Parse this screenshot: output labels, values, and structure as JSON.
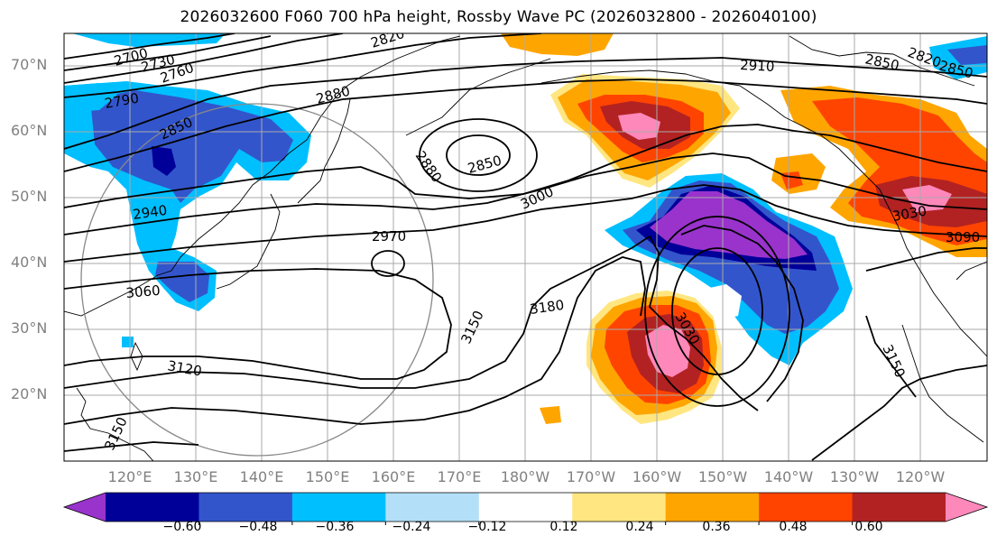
{
  "title": "2026032600 F060 700 hPa height, Rossby Wave PC (2026032800 - 2026040100)",
  "lat_labels": [
    "70°N",
    "60°N",
    "50°N",
    "40°N",
    "30°N",
    "20°N"
  ],
  "lon_labels": [
    "120°E",
    "130°E",
    "140°E",
    "150°E",
    "160°E",
    "170°E",
    "180°W",
    "170°W",
    "160°W",
    "150°W",
    "140°W",
    "130°W",
    "120°W"
  ],
  "contour_labels": [
    "2700",
    "2730",
    "2760",
    "2790",
    "2850",
    "2880",
    "2820",
    "2910",
    "2850",
    "2820",
    "2850",
    "2880",
    "2850",
    "2940",
    "2970",
    "3000",
    "3060",
    "3120",
    "3150",
    "3150",
    "3180",
    "3030",
    "3030",
    "3090",
    "3150"
  ],
  "colorbar": {
    "ticks": [
      "−0.60",
      "−0.48",
      "−0.36",
      "−0.24",
      "−0.12",
      "0.12",
      "0.24",
      "0.36",
      "0.48",
      "0.60"
    ],
    "bins": [
      {
        "color": "#9933cc"
      },
      {
        "color": "#000099"
      },
      {
        "color": "#3355cc"
      },
      {
        "color": "#00bfff"
      },
      {
        "color": "#b3e0f8"
      },
      {
        "color": "#ffffff"
      },
      {
        "color": "#ffe680"
      },
      {
        "color": "#ffa500"
      },
      {
        "color": "#ff4400"
      },
      {
        "color": "#b22222"
      },
      {
        "color": "#ff88bb"
      }
    ]
  }
}
